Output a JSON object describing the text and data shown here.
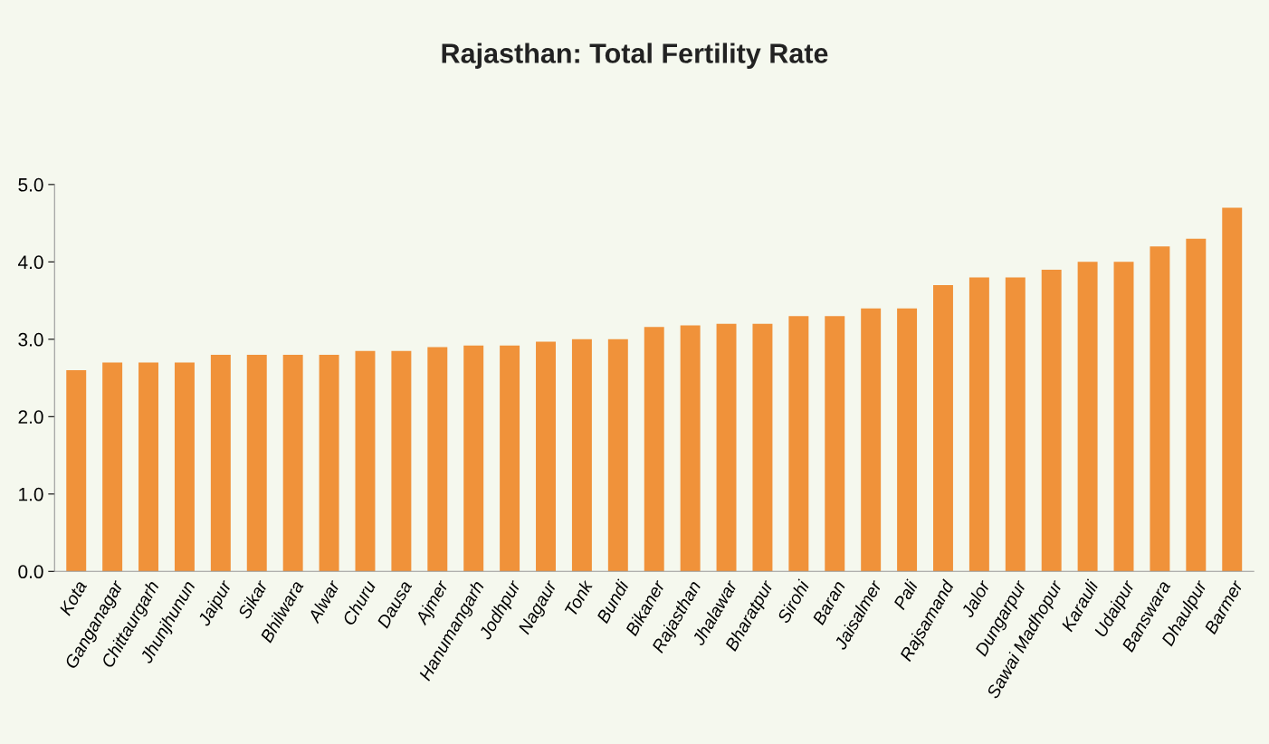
{
  "chart_data": {
    "type": "bar",
    "title": "Rajasthan: Total Fertility Rate",
    "categories": [
      "Kota",
      "Ganganagar",
      "Chittaurgarh",
      "Jhunjhunun",
      "Jaipur",
      "Sikar",
      "Bhilwara",
      "Alwar",
      "Churu",
      "Dausa",
      "Ajmer",
      "Hanumangarh",
      "Jodhpur",
      "Nagaur",
      "Tonk",
      "Bundi",
      "Bikaner",
      "Rajasthan",
      "Jhalawar",
      "Bharatpur",
      "Sirohi",
      "Baran",
      "Jaisalmer",
      "Pali",
      "Rajsamand",
      "Jalor",
      "Dungarpur",
      "Sawai Madhopur",
      "Karauli",
      "Udaipur",
      "Banswara",
      "Dhaulpur",
      "Barmer"
    ],
    "values": [
      2.6,
      2.7,
      2.7,
      2.7,
      2.8,
      2.8,
      2.8,
      2.8,
      2.85,
      2.85,
      2.9,
      2.92,
      2.92,
      2.97,
      3.0,
      3.0,
      3.16,
      3.18,
      3.2,
      3.2,
      3.3,
      3.3,
      3.4,
      3.4,
      3.7,
      3.8,
      3.8,
      3.9,
      4.0,
      4.0,
      4.2,
      4.3,
      4.7
    ],
    "color": "#f0923a",
    "ylim": [
      0,
      5
    ],
    "yticks": [
      {
        "value": 0,
        "label": "0.0"
      },
      {
        "value": 1,
        "label": "1.0"
      },
      {
        "value": 2,
        "label": "2.0"
      },
      {
        "value": 3,
        "label": "3.0"
      },
      {
        "value": 4,
        "label": "4.0"
      },
      {
        "value": 5,
        "label": "5.0"
      }
    ],
    "grid": false
  }
}
